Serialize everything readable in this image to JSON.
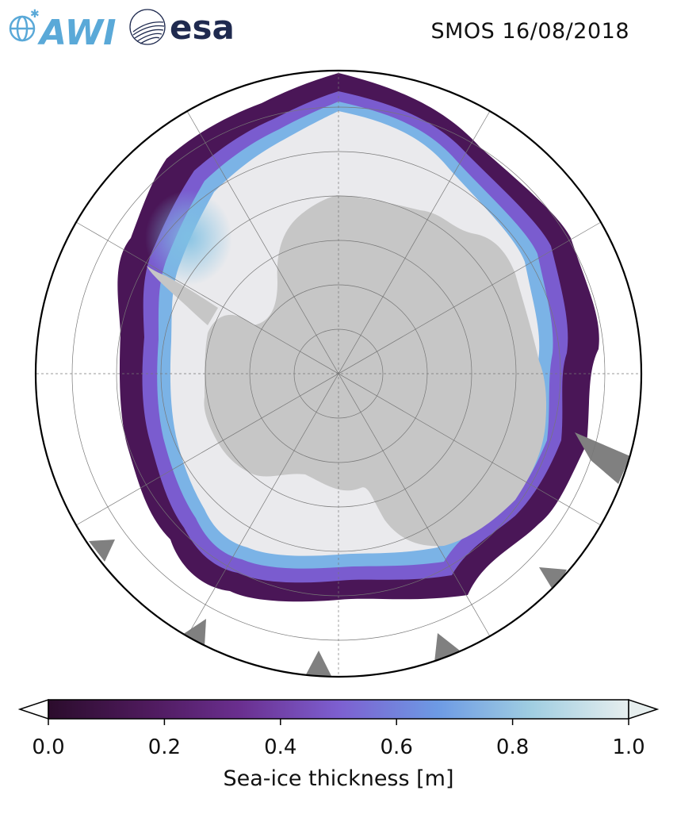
{
  "header": {
    "title": "SMOS 16/08/2018",
    "logos": [
      {
        "name": "awi-logo",
        "text": "AWI",
        "color": "#5aa9d8"
      },
      {
        "name": "esa-logo",
        "text": "esa",
        "color": "#1f2a4f"
      }
    ]
  },
  "map": {
    "projection": "south-polar-stereographic",
    "variable": "sea-ice thickness",
    "graticule": true,
    "colors": {
      "land": "#c6c6c6",
      "thick_ice": "#e9e9ec",
      "ocean": "#ffffff",
      "no_data": "#808080",
      "graticule": "#777777"
    }
  },
  "colorbar": {
    "label": "Sea-ice thickness [m]",
    "ticks": [
      "0.0",
      "0.2",
      "0.4",
      "0.6",
      "0.8",
      "1.0"
    ],
    "min": 0.0,
    "max": 1.0,
    "extend": "both",
    "colors": [
      "#2b0c2c",
      "#4e1a5c",
      "#6a2f8f",
      "#7d5fd0",
      "#6d9ae4",
      "#9fcde1",
      "#e6eeee"
    ]
  }
}
